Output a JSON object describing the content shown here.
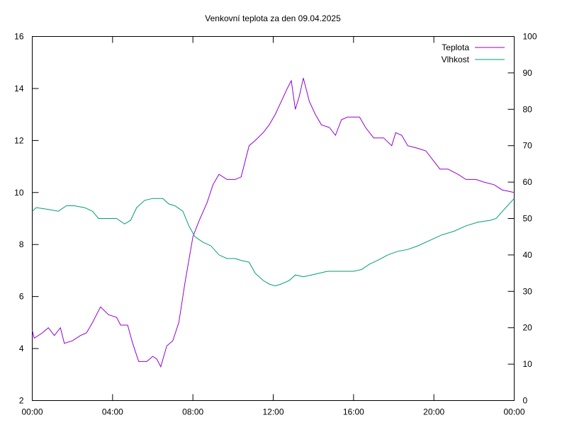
{
  "chart_data": {
    "type": "line",
    "title": "Venkovní teplota za den 09.04.2025",
    "x_ticks": [
      "00:00",
      "04:00",
      "08:00",
      "12:00",
      "16:00",
      "20:00",
      "00:00"
    ],
    "x_range_hours": [
      0,
      24
    ],
    "y_left": {
      "range": [
        2,
        16
      ],
      "ticks": [
        2,
        4,
        6,
        8,
        10,
        12,
        14,
        16
      ]
    },
    "y_right": {
      "range": [
        0,
        100
      ],
      "ticks": [
        0,
        10,
        20,
        30,
        40,
        50,
        60,
        70,
        80,
        90,
        100
      ]
    },
    "legend_position": "top-right",
    "grid": false,
    "series": [
      {
        "name": "Teplota",
        "axis": "left",
        "color": "#9400d3",
        "points": [
          [
            0,
            4.7
          ],
          [
            0.1,
            4.4
          ],
          [
            0.5,
            4.6
          ],
          [
            0.8,
            4.8
          ],
          [
            1.1,
            4.5
          ],
          [
            1.4,
            4.8
          ],
          [
            1.6,
            4.2
          ],
          [
            2.0,
            4.3
          ],
          [
            2.4,
            4.5
          ],
          [
            2.7,
            4.6
          ],
          [
            3.0,
            5.0
          ],
          [
            3.4,
            5.6
          ],
          [
            3.8,
            5.3
          ],
          [
            4.2,
            5.2
          ],
          [
            4.4,
            4.9
          ],
          [
            4.75,
            4.9
          ],
          [
            5.0,
            4.2
          ],
          [
            5.3,
            3.5
          ],
          [
            5.7,
            3.5
          ],
          [
            6.0,
            3.7
          ],
          [
            6.2,
            3.6
          ],
          [
            6.4,
            3.3
          ],
          [
            6.7,
            4.1
          ],
          [
            7.0,
            4.3
          ],
          [
            7.3,
            5.0
          ],
          [
            7.6,
            6.5
          ],
          [
            8.0,
            8.3
          ],
          [
            8.3,
            8.9
          ],
          [
            8.7,
            9.6
          ],
          [
            9.0,
            10.3
          ],
          [
            9.3,
            10.7
          ],
          [
            9.7,
            10.5
          ],
          [
            10.1,
            10.5
          ],
          [
            10.4,
            10.6
          ],
          [
            10.8,
            11.8
          ],
          [
            11.1,
            12.0
          ],
          [
            11.5,
            12.3
          ],
          [
            11.8,
            12.6
          ],
          [
            12.1,
            13.0
          ],
          [
            12.4,
            13.5
          ],
          [
            12.7,
            14.0
          ],
          [
            12.9,
            14.3
          ],
          [
            13.1,
            13.2
          ],
          [
            13.3,
            13.7
          ],
          [
            13.5,
            14.4
          ],
          [
            13.8,
            13.5
          ],
          [
            14.1,
            13.0
          ],
          [
            14.4,
            12.6
          ],
          [
            14.8,
            12.5
          ],
          [
            15.1,
            12.2
          ],
          [
            15.4,
            12.8
          ],
          [
            15.7,
            12.9
          ],
          [
            16.0,
            12.9
          ],
          [
            16.3,
            12.9
          ],
          [
            16.6,
            12.5
          ],
          [
            17.0,
            12.1
          ],
          [
            17.5,
            12.1
          ],
          [
            17.9,
            11.8
          ],
          [
            18.1,
            12.3
          ],
          [
            18.4,
            12.2
          ],
          [
            18.7,
            11.8
          ],
          [
            19.2,
            11.7
          ],
          [
            19.6,
            11.6
          ],
          [
            20.0,
            11.2
          ],
          [
            20.3,
            10.9
          ],
          [
            20.7,
            10.9
          ],
          [
            21.2,
            10.7
          ],
          [
            21.6,
            10.5
          ],
          [
            22.1,
            10.5
          ],
          [
            22.5,
            10.4
          ],
          [
            23.0,
            10.3
          ],
          [
            23.4,
            10.1
          ],
          [
            24.0,
            10.0
          ]
        ]
      },
      {
        "name": "Vlhkost",
        "axis": "right",
        "color": "#009e73",
        "points": [
          [
            0,
            52
          ],
          [
            0.2,
            53
          ],
          [
            0.8,
            52.5
          ],
          [
            1.3,
            52
          ],
          [
            1.7,
            53.5
          ],
          [
            2.1,
            53.5
          ],
          [
            2.6,
            53
          ],
          [
            3.0,
            52
          ],
          [
            3.3,
            50
          ],
          [
            3.8,
            50
          ],
          [
            4.2,
            50
          ],
          [
            4.6,
            48.5
          ],
          [
            4.9,
            49.5
          ],
          [
            5.2,
            53
          ],
          [
            5.6,
            55
          ],
          [
            6.0,
            55.5
          ],
          [
            6.5,
            55.5
          ],
          [
            6.8,
            54
          ],
          [
            7.1,
            53.5
          ],
          [
            7.5,
            52
          ],
          [
            7.8,
            48
          ],
          [
            8.1,
            45
          ],
          [
            8.5,
            43.5
          ],
          [
            8.9,
            42.5
          ],
          [
            9.3,
            40
          ],
          [
            9.7,
            39
          ],
          [
            10.1,
            39
          ],
          [
            10.4,
            38.5
          ],
          [
            10.8,
            38
          ],
          [
            11.1,
            35
          ],
          [
            11.5,
            33
          ],
          [
            11.8,
            32
          ],
          [
            12.1,
            31.5
          ],
          [
            12.4,
            32
          ],
          [
            12.8,
            33
          ],
          [
            13.1,
            34.5
          ],
          [
            13.5,
            34
          ],
          [
            13.9,
            34.5
          ],
          [
            14.3,
            35
          ],
          [
            14.7,
            35.5
          ],
          [
            15.1,
            35.5
          ],
          [
            15.5,
            35.5
          ],
          [
            16.0,
            35.5
          ],
          [
            16.4,
            36
          ],
          [
            16.8,
            37.5
          ],
          [
            17.2,
            38.5
          ],
          [
            17.7,
            40
          ],
          [
            18.2,
            41
          ],
          [
            18.7,
            41.5
          ],
          [
            19.2,
            42.5
          ],
          [
            19.8,
            44
          ],
          [
            20.4,
            45.5
          ],
          [
            21.0,
            46.5
          ],
          [
            21.6,
            48
          ],
          [
            22.2,
            49
          ],
          [
            22.8,
            49.5
          ],
          [
            23.1,
            50
          ],
          [
            23.5,
            52.5
          ],
          [
            24.0,
            55.5
          ]
        ]
      }
    ]
  }
}
